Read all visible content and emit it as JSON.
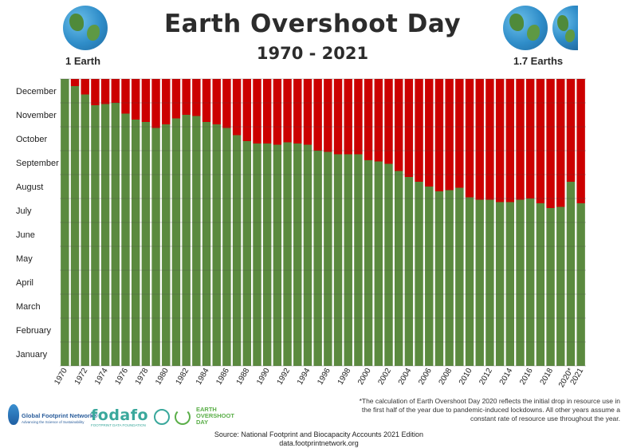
{
  "header": {
    "title": "Earth Overshoot Day",
    "subtitle": "1970 - 2021",
    "left_label": "1 Earth",
    "right_label": "1.7 Earths",
    "icon_left": "globe-icon",
    "icon_right": "globe-icon"
  },
  "footnote": "*The calculation of Earth Overshoot Day 2020 reflects the initial drop in resource use in the first half of the year due to pandemic-induced lockdowns. All other years assume a constant rate of resource use throughout the year.",
  "source": {
    "line1": "Source: National Footprint and Biocapacity Accounts 2021 Edition",
    "line2": "data.footprintnetwork.org"
  },
  "logos": {
    "gfn_name": "Global Footprint Network®",
    "gfn_tagline": "Advancing the Science of Sustainability",
    "fodafo_name": "fodafo",
    "fodafo_tagline": "FOOTPRINT DATA FOUNDATION",
    "eod_line1": "EARTH",
    "eod_line2": "OVERSHOOT",
    "eod_line3": "DAY"
  },
  "colors": {
    "green": "#5b8a3f",
    "red": "#cc0000",
    "grid": "#4a4a4a"
  },
  "chart_data": {
    "type": "bar",
    "stacked": true,
    "y_axis": "month of year",
    "ylim": [
      0,
      12
    ],
    "y_tick_labels": [
      "January",
      "February",
      "March",
      "April",
      "May",
      "June",
      "July",
      "August",
      "September",
      "October",
      "November",
      "December"
    ],
    "categories": [
      "1970",
      "1971",
      "1972",
      "1973",
      "1974",
      "1975",
      "1976",
      "1977",
      "1978",
      "1979",
      "1980",
      "1981",
      "1982",
      "1983",
      "1984",
      "1985",
      "1986",
      "1987",
      "1988",
      "1989",
      "1990",
      "1991",
      "1992",
      "1993",
      "1994",
      "1995",
      "1996",
      "1997",
      "1998",
      "1999",
      "2000",
      "2001",
      "2002",
      "2003",
      "2004",
      "2005",
      "2006",
      "2007",
      "2008",
      "2009",
      "2010",
      "2011",
      "2012",
      "2013",
      "2014",
      "2015",
      "2016",
      "2017",
      "2018",
      "2019",
      "2020",
      "2021"
    ],
    "x_tick_labels": [
      "1970",
      "",
      "1972",
      "",
      "1974",
      "",
      "1976",
      "",
      "1978",
      "",
      "1980",
      "",
      "1982",
      "",
      "1984",
      "",
      "1986",
      "",
      "1988",
      "",
      "1990",
      "",
      "1992",
      "",
      "1994",
      "",
      "1996",
      "",
      "1998",
      "",
      "2000",
      "",
      "2002",
      "",
      "2004",
      "",
      "2006",
      "",
      "2008",
      "",
      "2010",
      "",
      "2012",
      "",
      "2014",
      "",
      "2016",
      "",
      "2018",
      "",
      "2020*",
      "2021"
    ],
    "series": [
      {
        "values": [
          12.0,
          11.7,
          11.35,
          10.9,
          10.95,
          11.0,
          10.55,
          10.3,
          10.2,
          9.95,
          10.1,
          10.35,
          10.5,
          10.45,
          10.2,
          10.1,
          9.95,
          9.65,
          9.4,
          9.3,
          9.3,
          9.25,
          9.35,
          9.3,
          9.25,
          9.0,
          8.95,
          8.85,
          8.85,
          8.85,
          8.6,
          8.55,
          8.45,
          8.15,
          7.9,
          7.7,
          7.5,
          7.3,
          7.35,
          7.45,
          7.05,
          6.95,
          6.95,
          6.85,
          6.85,
          6.95,
          7.0,
          6.8,
          6.6,
          6.65,
          7.7,
          6.8
        ]
      },
      {
        "values": [
          0.0,
          0.3,
          0.65,
          1.1,
          1.05,
          1.0,
          1.45,
          1.7,
          1.8,
          2.05,
          1.9,
          1.65,
          1.5,
          1.55,
          1.8,
          1.9,
          2.05,
          2.35,
          2.6,
          2.7,
          2.7,
          2.75,
          2.65,
          2.7,
          2.75,
          3.0,
          3.05,
          3.15,
          3.15,
          3.15,
          3.4,
          3.45,
          3.55,
          3.85,
          4.1,
          4.3,
          4.5,
          4.7,
          4.65,
          4.55,
          4.95,
          5.05,
          5.05,
          5.15,
          5.15,
          5.05,
          5.0,
          5.2,
          5.4,
          5.35,
          4.3,
          5.2
        ]
      }
    ]
  }
}
